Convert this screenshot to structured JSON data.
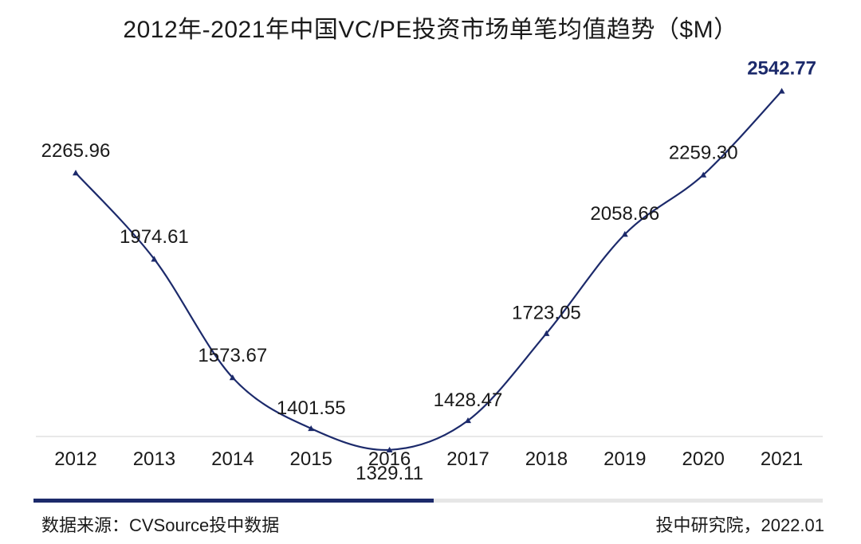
{
  "title": "2012年-2021年中国VC/PE投资市场单笔均值趋势（$M）",
  "source": "数据来源：CVSource投中数据",
  "credit": "投中研究院，2022.01",
  "colors": {
    "line": "#1c2a6b",
    "highlight_label": "#1c2a6b",
    "label": "#1a1a1a",
    "axis": "#e0e0e0"
  },
  "chart_data": {
    "type": "line",
    "title": "2012年-2021年中国VC/PE投资市场单笔均值趋势（$M）",
    "categories": [
      "2012",
      "2013",
      "2014",
      "2015",
      "2016",
      "2017",
      "2018",
      "2019",
      "2020",
      "2021"
    ],
    "series": [
      {
        "values": [
          2265.96,
          1974.61,
          1573.67,
          1401.55,
          1329.11,
          1428.47,
          1723.05,
          2058.66,
          2259.3,
          2542.77
        ],
        "labels": [
          "2265.96",
          "1974.61",
          "1573.67",
          "1401.55",
          "1329.11",
          "1428.47",
          "1723.05",
          "2058.66",
          "2259.30",
          "2542.77"
        ]
      }
    ],
    "marker": "triangle",
    "smooth": true,
    "highlight_last_label": true,
    "grid": false,
    "xlabel": "",
    "ylabel": "",
    "ylim": [
      1000,
      2700
    ]
  }
}
